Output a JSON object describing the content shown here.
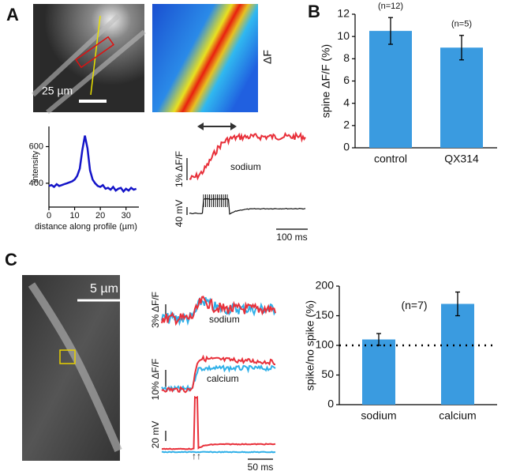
{
  "labels": {
    "panel_a": "A",
    "panel_b": "B",
    "panel_c": "C",
    "scale_a": "25 µm",
    "delta_f": "ΔF",
    "a_sodium": "sodium",
    "a_df": "1% ΔF/F",
    "a_mv": "40 mV",
    "a_ms": "100 ms",
    "scale_c": "5 µm",
    "c_df_na": "3% ΔF/F",
    "c_sodium": "sodium",
    "c_df_ca": "10% ΔF/F",
    "c_calcium": "calcium",
    "c_mv": "20 mV",
    "c_arrows": "↑↑",
    "c_ms": "50 ms"
  },
  "chart_data": [
    {
      "type": "line",
      "x_label": "distance along profile (µm)",
      "y_label": "intensity",
      "color": "#1414c8",
      "x": [
        0,
        1,
        2,
        3,
        4,
        5,
        6,
        7,
        8,
        9,
        10,
        11,
        12,
        13,
        14,
        15,
        16,
        17,
        18,
        19,
        20,
        21,
        22,
        23,
        24,
        25,
        26,
        27,
        28,
        29,
        30,
        31,
        32,
        33,
        34
      ],
      "values": [
        385,
        390,
        380,
        395,
        385,
        390,
        395,
        400,
        405,
        410,
        420,
        440,
        480,
        580,
        660,
        590,
        470,
        420,
        400,
        385,
        380,
        390,
        370,
        375,
        365,
        380,
        360,
        370,
        375,
        355,
        370,
        360,
        375,
        365,
        370
      ],
      "xlim": [
        0,
        35
      ],
      "xticks": [
        0,
        10,
        20,
        30
      ],
      "ylim": [
        270,
        710
      ],
      "yticks": [
        400,
        600
      ]
    },
    {
      "type": "bar",
      "y_label": "spine ΔF/F (%)",
      "color": "#3a9be0",
      "categories": [
        "control",
        "QX314"
      ],
      "values": [
        10.5,
        9.0
      ],
      "errors": [
        1.2,
        1.1
      ],
      "annotations": [
        "(n=12)",
        "(n=5)"
      ],
      "ylim": [
        0,
        12
      ],
      "yticks": [
        0,
        2,
        4,
        6,
        8,
        10,
        12
      ]
    },
    {
      "type": "bar",
      "y_label": "spike/no spike (%)",
      "color": "#3a9be0",
      "categories": [
        "sodium",
        "calcium"
      ],
      "values": [
        110,
        170
      ],
      "errors": [
        10,
        20
      ],
      "annotation": "(n=7)",
      "reference_line": 100,
      "ylim": [
        0,
        200
      ],
      "yticks": [
        0,
        50,
        100,
        150,
        200
      ]
    }
  ]
}
